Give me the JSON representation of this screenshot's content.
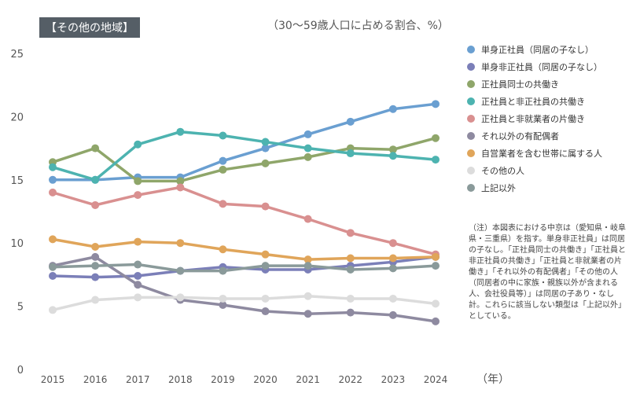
{
  "tag": "【その他の地域】",
  "chart_data": {
    "type": "line",
    "subtitle": "（30〜59歳人口に占める割合、%）",
    "xlabel": "（年）",
    "x": [
      2015,
      2016,
      2017,
      2018,
      2019,
      2020,
      2021,
      2022,
      2023,
      2024
    ],
    "ylim": [
      0,
      25
    ],
    "yticks": [
      0,
      5,
      10,
      15,
      20,
      25
    ],
    "grid": false,
    "legend": "right",
    "series": [
      {
        "name": "単身正社員（同居の子なし）",
        "color": "#6a9fd1",
        "values": [
          15.0,
          15.0,
          15.2,
          15.2,
          16.5,
          17.5,
          18.6,
          19.6,
          20.6,
          21.0
        ]
      },
      {
        "name": "単身非正社員（同居の子なし）",
        "color": "#7b7fb8",
        "values": [
          7.4,
          7.3,
          7.4,
          7.8,
          8.1,
          7.9,
          7.9,
          8.2,
          8.5,
          8.9
        ]
      },
      {
        "name": "正社員同士の共働き",
        "color": "#8fa66a",
        "values": [
          16.4,
          17.5,
          14.9,
          14.9,
          15.8,
          16.3,
          16.8,
          17.5,
          17.4,
          18.3
        ]
      },
      {
        "name": "正社員と非正社員の共働き",
        "color": "#4db3b0",
        "values": [
          16.0,
          15.0,
          17.8,
          18.8,
          18.5,
          18.0,
          17.5,
          17.1,
          16.9,
          16.6
        ]
      },
      {
        "name": "正社員と非就業者の片働き",
        "color": "#d99090",
        "values": [
          14.0,
          13.0,
          13.8,
          14.4,
          13.1,
          12.9,
          11.9,
          10.8,
          10.0,
          9.1
        ]
      },
      {
        "name": "それ以外の有配偶者",
        "color": "#8e8aa0",
        "values": [
          8.2,
          8.9,
          6.7,
          5.5,
          5.1,
          4.6,
          4.4,
          4.5,
          4.3,
          3.8
        ]
      },
      {
        "name": "自営業者を含む世帯に属する人",
        "color": "#e0a55a",
        "values": [
          10.3,
          9.7,
          10.1,
          10.0,
          9.5,
          9.1,
          8.7,
          8.8,
          8.8,
          8.9
        ]
      },
      {
        "name": "その他の人",
        "color": "#dcdcdc",
        "values": [
          4.7,
          5.5,
          5.7,
          5.7,
          5.6,
          5.6,
          5.8,
          5.6,
          5.6,
          5.2
        ]
      },
      {
        "name": "上記以外",
        "color": "#8a9a9a",
        "values": [
          8.1,
          8.2,
          8.3,
          7.8,
          7.8,
          8.2,
          8.2,
          7.9,
          8.0,
          8.2
        ]
      }
    ]
  },
  "note": "（注）本図表における中京は（愛知県・岐阜県・三重県）を指す。単身非正社員」は同居の子なし。「正社員同士の共働き」「正社員と非正社員の共働き」「正社員と非就業者の片働き」「それ以外の有配偶者」「その他の人（同居者の中に家族・親族以外が含まれる人、会社役員等）」は同居の子あり・なし計。これらに該当しない類型は「上記以外」としている。"
}
